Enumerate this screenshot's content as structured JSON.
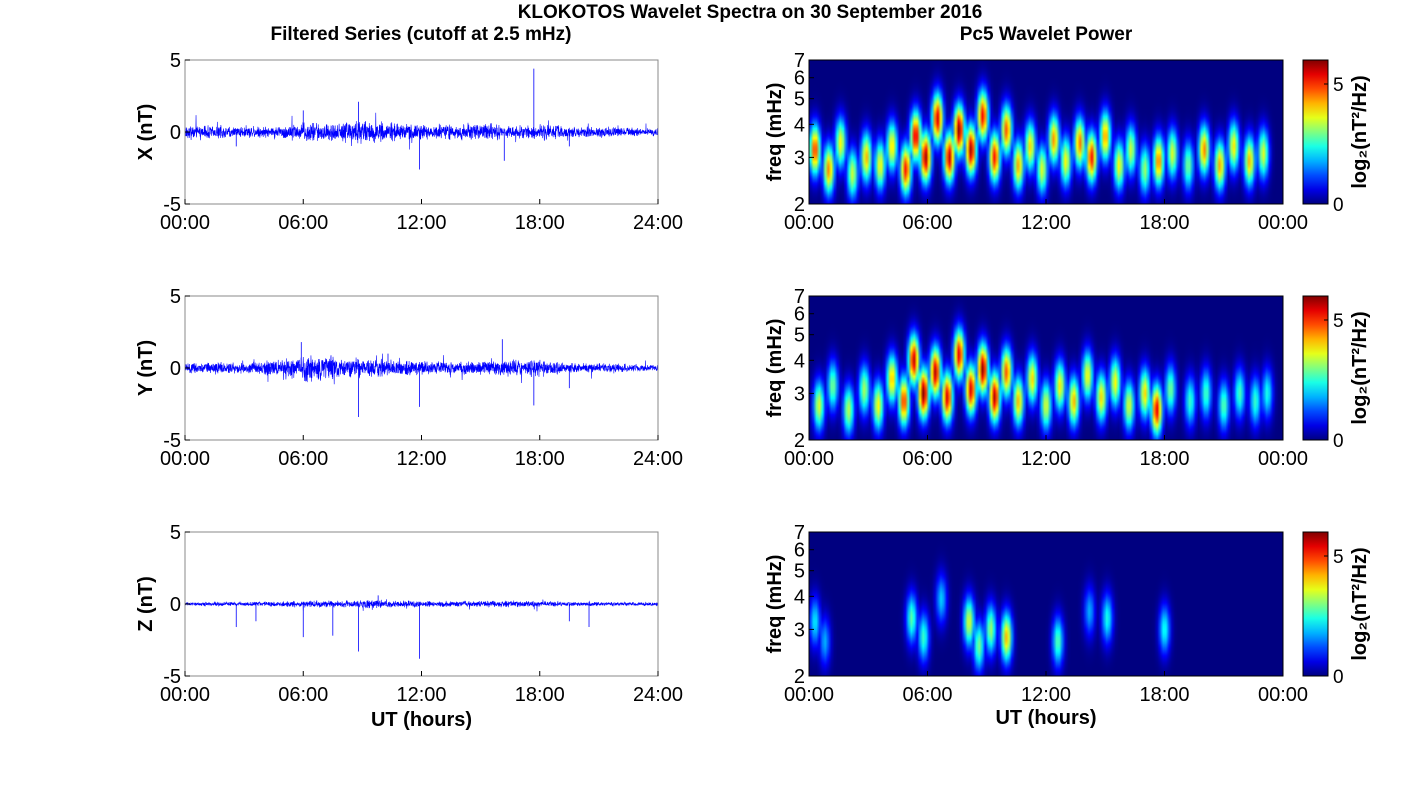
{
  "figure": {
    "title": "KLOKOTOS Wavelet Spectra on 30 September 2016",
    "left_title": "Filtered Series (cutoff at 2.5 mHz)",
    "right_title": "Pc5 Wavelet Power",
    "xlabel": "UT (hours)",
    "freq_label": "freq (mHz)",
    "cbar_label": "log₂(nT²/Hz)"
  },
  "chart_data": [
    {
      "type": "line",
      "component": "X",
      "ylabel": "X (nT)",
      "ylim": [
        -5,
        5
      ],
      "yticks": [
        5,
        0,
        -5
      ],
      "xlim": [
        0,
        24
      ],
      "xticks": [
        "00:00",
        "06:00",
        "12:00",
        "18:00",
        "24:00"
      ],
      "xlabel": "",
      "series": [
        {
          "color": "#0000ff",
          "activity": [
            0.35,
            0.4,
            0.3,
            0.35,
            0.3,
            0.45,
            0.55,
            0.5,
            0.7,
            0.6,
            0.5,
            0.45,
            0.4,
            0.4,
            0.5,
            0.45,
            0.35,
            0.35,
            0.45,
            0.3,
            0.3,
            0.3,
            0.25,
            0.2
          ],
          "spikes": [
            [
              17.7,
              4.4
            ],
            [
              11.9,
              -2.6
            ],
            [
              8.8,
              2.1
            ],
            [
              16.2,
              -2.0
            ],
            [
              6.0,
              1.5
            ],
            [
              2.6,
              -1.0
            ],
            [
              19.5,
              -1.0
            ]
          ]
        }
      ]
    },
    {
      "type": "line",
      "component": "Y",
      "ylabel": "Y (nT)",
      "ylim": [
        -5,
        5
      ],
      "yticks": [
        5,
        0,
        -5
      ],
      "xlim": [
        0,
        24
      ],
      "xticks": [
        "00:00",
        "06:00",
        "12:00",
        "18:00",
        "24:00"
      ],
      "xlabel": "",
      "series": [
        {
          "color": "#0000ff",
          "activity": [
            0.3,
            0.35,
            0.3,
            0.35,
            0.45,
            0.6,
            0.8,
            0.6,
            0.55,
            0.5,
            0.45,
            0.4,
            0.35,
            0.35,
            0.35,
            0.4,
            0.45,
            0.5,
            0.35,
            0.3,
            0.25,
            0.25,
            0.25,
            0.2
          ],
          "spikes": [
            [
              8.8,
              -3.4
            ],
            [
              11.9,
              -2.7
            ],
            [
              17.7,
              -2.6
            ],
            [
              5.9,
              1.8
            ],
            [
              16.1,
              2.0
            ],
            [
              19.5,
              -1.4
            ],
            [
              10.3,
              1.0
            ]
          ]
        }
      ]
    },
    {
      "type": "line",
      "component": "Z",
      "ylabel": "Z (nT)",
      "ylim": [
        -5,
        5
      ],
      "yticks": [
        5,
        0,
        -5
      ],
      "xlim": [
        0,
        24
      ],
      "xticks": [
        "00:00",
        "06:00",
        "12:00",
        "18:00",
        "24:00"
      ],
      "xlabel": "UT (hours)",
      "series": [
        {
          "color": "#0000ff",
          "activity": [
            0.1,
            0.12,
            0.12,
            0.12,
            0.14,
            0.16,
            0.18,
            0.18,
            0.2,
            0.22,
            0.2,
            0.18,
            0.16,
            0.16,
            0.16,
            0.2,
            0.18,
            0.16,
            0.14,
            0.12,
            0.12,
            0.1,
            0.1,
            0.1
          ],
          "spikes": [
            [
              11.9,
              -3.8
            ],
            [
              8.8,
              -3.3
            ],
            [
              6.0,
              -2.3
            ],
            [
              7.5,
              -2.2
            ],
            [
              2.6,
              -1.6
            ],
            [
              3.6,
              -1.2
            ],
            [
              20.5,
              -1.6
            ],
            [
              19.5,
              -1.2
            ],
            [
              9.8,
              0.6
            ]
          ]
        }
      ]
    },
    {
      "type": "heatmap",
      "component": "X",
      "ylabel": "freq (mHz)",
      "yticks": [
        2,
        3,
        4,
        5,
        6,
        7
      ],
      "ylim": [
        2,
        7
      ],
      "yscale": "log",
      "xticks": [
        "00:00",
        "06:00",
        "12:00",
        "18:00",
        "00:00"
      ],
      "xlabel": "",
      "colorbar": {
        "label": "log₂(nT²/Hz)",
        "ticks": [
          0,
          5
        ],
        "range": [
          0,
          6
        ],
        "colormap": "jet"
      },
      "blobs": [
        [
          0.3,
          3.2,
          5.0
        ],
        [
          1.0,
          2.7,
          4.5
        ],
        [
          1.6,
          3.4,
          3.8
        ],
        [
          2.2,
          2.6,
          3.5
        ],
        [
          2.9,
          3.0,
          4.2
        ],
        [
          3.6,
          2.8,
          3.8
        ],
        [
          4.2,
          3.3,
          4.0
        ],
        [
          4.9,
          2.7,
          5.2
        ],
        [
          5.4,
          3.6,
          5.5
        ],
        [
          5.9,
          3.0,
          5.8
        ],
        [
          6.5,
          4.2,
          5.5
        ],
        [
          7.1,
          3.0,
          5.6
        ],
        [
          7.6,
          3.8,
          5.9
        ],
        [
          8.2,
          3.2,
          5.8
        ],
        [
          8.8,
          4.3,
          5.3
        ],
        [
          9.4,
          3.0,
          5.2
        ],
        [
          10.0,
          3.8,
          4.8
        ],
        [
          10.6,
          2.8,
          4.3
        ],
        [
          11.2,
          3.3,
          4.0
        ],
        [
          11.8,
          2.7,
          3.6
        ],
        [
          12.4,
          3.5,
          4.4
        ],
        [
          13.0,
          2.9,
          3.8
        ],
        [
          13.7,
          3.4,
          4.6
        ],
        [
          14.3,
          3.0,
          5.2
        ],
        [
          15.0,
          3.6,
          4.4
        ],
        [
          15.7,
          2.8,
          3.8
        ],
        [
          16.3,
          3.2,
          3.5
        ],
        [
          17.0,
          2.7,
          3.2
        ],
        [
          17.7,
          2.9,
          4.6
        ],
        [
          18.4,
          3.1,
          3.6
        ],
        [
          19.2,
          2.8,
          3.0
        ],
        [
          20.0,
          3.2,
          4.5
        ],
        [
          20.8,
          2.8,
          4.3
        ],
        [
          21.5,
          3.3,
          3.9
        ],
        [
          22.3,
          2.9,
          4.2
        ],
        [
          23.0,
          3.1,
          3.6
        ]
      ]
    },
    {
      "type": "heatmap",
      "component": "Y",
      "ylabel": "freq (mHz)",
      "yticks": [
        2,
        3,
        4,
        5,
        6,
        7
      ],
      "ylim": [
        2,
        7
      ],
      "yscale": "log",
      "xticks": [
        "00:00",
        "06:00",
        "12:00",
        "18:00",
        "00:00"
      ],
      "xlabel": "",
      "colorbar": {
        "label": "log₂(nT²/Hz)",
        "ticks": [
          0,
          5
        ],
        "range": [
          0,
          6
        ],
        "colormap": "jet"
      },
      "blobs": [
        [
          0.5,
          2.7,
          3.6
        ],
        [
          1.2,
          3.2,
          3.0
        ],
        [
          2.0,
          2.6,
          3.4
        ],
        [
          2.8,
          3.1,
          3.3
        ],
        [
          3.5,
          2.7,
          3.8
        ],
        [
          4.2,
          3.4,
          4.2
        ],
        [
          4.8,
          2.8,
          5.0
        ],
        [
          5.3,
          4.0,
          5.6
        ],
        [
          5.8,
          3.0,
          6.0
        ],
        [
          6.4,
          3.6,
          5.7
        ],
        [
          7.0,
          2.9,
          5.5
        ],
        [
          7.6,
          4.2,
          5.4
        ],
        [
          8.2,
          3.1,
          5.5
        ],
        [
          8.8,
          3.7,
          5.9
        ],
        [
          9.4,
          2.9,
          5.7
        ],
        [
          10.0,
          3.6,
          4.8
        ],
        [
          10.6,
          2.8,
          4.2
        ],
        [
          11.3,
          3.4,
          4.0
        ],
        [
          12.0,
          2.7,
          3.6
        ],
        [
          12.7,
          3.2,
          3.9
        ],
        [
          13.4,
          2.8,
          4.2
        ],
        [
          14.1,
          3.5,
          3.8
        ],
        [
          14.8,
          2.9,
          4.0
        ],
        [
          15.5,
          3.3,
          3.8
        ],
        [
          16.2,
          2.7,
          3.6
        ],
        [
          17.0,
          3.0,
          4.0
        ],
        [
          17.6,
          2.6,
          5.4
        ],
        [
          18.3,
          3.1,
          3.0
        ],
        [
          19.3,
          2.8,
          2.6
        ],
        [
          20.1,
          3.0,
          2.7
        ],
        [
          21.0,
          2.7,
          2.8
        ],
        [
          21.8,
          3.0,
          2.7
        ],
        [
          22.6,
          2.8,
          2.6
        ],
        [
          23.2,
          3.0,
          2.4
        ]
      ]
    },
    {
      "type": "heatmap",
      "component": "Z",
      "ylabel": "freq (mHz)",
      "yticks": [
        2,
        3,
        4,
        5,
        6,
        7
      ],
      "ylim": [
        2,
        7
      ],
      "yscale": "log",
      "xticks": [
        "00:00",
        "06:00",
        "12:00",
        "18:00",
        "00:00"
      ],
      "xlabel": "UT (hours)",
      "colorbar": {
        "label": "log₂(nT²/Hz)",
        "ticks": [
          0,
          5
        ],
        "range": [
          0,
          6
        ],
        "colormap": "jet"
      },
      "blobs": [
        [
          0.3,
          3.2,
          2.2
        ],
        [
          0.8,
          2.7,
          1.8
        ],
        [
          5.2,
          3.3,
          2.8
        ],
        [
          5.8,
          2.8,
          2.6
        ],
        [
          8.1,
          3.2,
          3.6
        ],
        [
          8.6,
          2.6,
          3.0
        ],
        [
          9.2,
          3.0,
          3.2
        ],
        [
          10.0,
          2.8,
          4.2
        ],
        [
          12.6,
          2.7,
          2.8
        ],
        [
          15.1,
          3.3,
          2.4
        ],
        [
          18.0,
          3.0,
          2.4
        ],
        [
          6.7,
          3.9,
          2.0
        ],
        [
          14.2,
          3.5,
          1.8
        ]
      ]
    }
  ]
}
